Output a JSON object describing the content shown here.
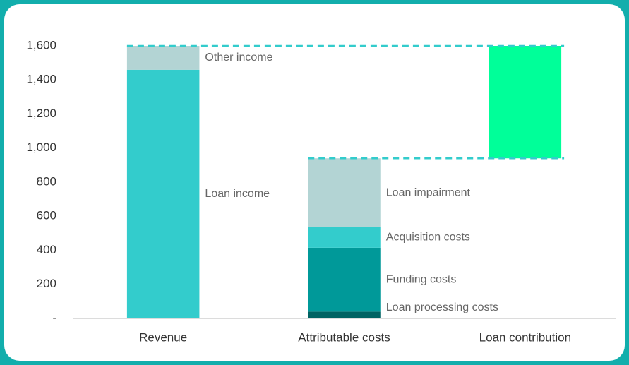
{
  "chart_data": {
    "type": "waterfall",
    "categories": [
      "Revenue",
      "Attributable costs",
      "Loan contribution"
    ],
    "stacks": [
      {
        "segments": [
          {
            "name": "Loan income",
            "value": 1460,
            "color": "#33cccc"
          },
          {
            "name": "Other income",
            "value": 140,
            "color": "#b3d4d4"
          }
        ]
      },
      {
        "segments": [
          {
            "name": "Loan processing costs",
            "value": 40,
            "color": "#006262"
          },
          {
            "name": "Funding costs",
            "value": 375,
            "color": "#009999"
          },
          {
            "name": "Acquisition costs",
            "value": 120,
            "color": "#33cccc"
          },
          {
            "name": "Loan impairment",
            "value": 405,
            "color": "#b3d4d4"
          }
        ]
      },
      {
        "segments": [
          {
            "value": 660,
            "color": "#00ff99"
          }
        ]
      }
    ],
    "ylim": [
      0,
      1600
    ],
    "yticks": [
      {
        "value": 0,
        "label": "-"
      },
      200,
      400,
      600,
      800,
      {
        "value": 1000,
        "label": "1,000"
      },
      {
        "value": 1200,
        "label": "1,200"
      },
      {
        "value": 1400,
        "label": "1,400"
      },
      {
        "value": 1600,
        "label": "1,600"
      }
    ],
    "connector_color": "#33cccc"
  }
}
